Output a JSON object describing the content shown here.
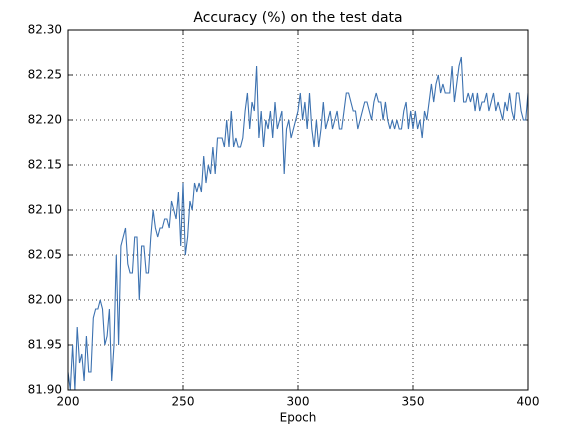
{
  "chart_data": {
    "type": "line",
    "title": "Accuracy (%) on the test data",
    "x_label": "Epoch",
    "x": [
      200,
      201,
      202,
      203,
      204,
      205,
      206,
      207,
      208,
      209,
      210,
      211,
      212,
      213,
      214,
      215,
      216,
      217,
      218,
      219,
      220,
      221,
      222,
      223,
      224,
      225,
      226,
      227,
      228,
      229,
      230,
      231,
      232,
      233,
      234,
      235,
      236,
      237,
      238,
      239,
      240,
      241,
      242,
      243,
      244,
      245,
      246,
      247,
      248,
      249,
      250,
      251,
      252,
      253,
      254,
      255,
      256,
      257,
      258,
      259,
      260,
      261,
      262,
      263,
      264,
      265,
      266,
      267,
      268,
      269,
      270,
      271,
      272,
      273,
      274,
      275,
      276,
      277,
      278,
      279,
      280,
      281,
      282,
      283,
      284,
      285,
      286,
      287,
      288,
      289,
      290,
      291,
      292,
      293,
      294,
      295,
      296,
      297,
      298,
      299,
      300,
      301,
      302,
      303,
      304,
      305,
      306,
      307,
      308,
      309,
      310,
      311,
      312,
      313,
      314,
      315,
      316,
      317,
      318,
      319,
      320,
      321,
      322,
      323,
      324,
      325,
      326,
      327,
      328,
      329,
      330,
      331,
      332,
      333,
      334,
      335,
      336,
      337,
      338,
      339,
      340,
      341,
      342,
      343,
      344,
      345,
      346,
      347,
      348,
      349,
      350,
      351,
      352,
      353,
      354,
      355,
      356,
      357,
      358,
      359,
      360,
      361,
      362,
      363,
      364,
      365,
      366,
      367,
      368,
      369,
      370,
      371,
      372,
      373,
      374,
      375,
      376,
      377,
      378,
      379,
      380,
      381,
      382,
      383,
      384,
      385,
      386,
      387,
      388,
      389,
      390,
      391,
      392,
      393,
      394,
      395,
      396,
      397,
      398,
      399,
      400
    ],
    "series": [
      {
        "color": "#3d72b0",
        "values": [
          81.92,
          81.9,
          81.95,
          81.9,
          81.97,
          81.93,
          81.94,
          81.91,
          81.96,
          81.92,
          81.92,
          81.98,
          81.99,
          81.99,
          82.0,
          81.99,
          81.95,
          81.96,
          81.99,
          81.91,
          81.95,
          82.05,
          81.95,
          82.06,
          82.07,
          82.08,
          82.04,
          82.03,
          82.03,
          82.07,
          82.07,
          82.0,
          82.06,
          82.06,
          82.03,
          82.03,
          82.07,
          82.1,
          82.08,
          82.07,
          82.08,
          82.08,
          82.09,
          82.09,
          82.08,
          82.11,
          82.1,
          82.09,
          82.12,
          82.06,
          82.13,
          82.05,
          82.07,
          82.11,
          82.1,
          82.13,
          82.12,
          82.13,
          82.12,
          82.16,
          82.13,
          82.15,
          82.14,
          82.17,
          82.14,
          82.18,
          82.18,
          82.18,
          82.17,
          82.2,
          82.17,
          82.21,
          82.17,
          82.18,
          82.17,
          82.17,
          82.18,
          82.21,
          82.23,
          82.19,
          82.22,
          82.21,
          82.26,
          82.18,
          82.21,
          82.17,
          82.2,
          82.19,
          82.21,
          82.18,
          82.22,
          82.19,
          82.2,
          82.21,
          82.14,
          82.19,
          82.2,
          82.18,
          82.19,
          82.2,
          82.21,
          82.23,
          82.2,
          82.22,
          82.19,
          82.23,
          82.19,
          82.17,
          82.2,
          82.17,
          82.19,
          82.22,
          82.19,
          82.2,
          82.21,
          82.19,
          82.2,
          82.21,
          82.19,
          82.19,
          82.21,
          82.23,
          82.23,
          82.22,
          82.21,
          82.21,
          82.19,
          82.2,
          82.21,
          82.22,
          82.22,
          82.21,
          82.2,
          82.22,
          82.23,
          82.22,
          82.22,
          82.2,
          82.22,
          82.2,
          82.19,
          82.2,
          82.19,
          82.2,
          82.19,
          82.19,
          82.21,
          82.22,
          82.19,
          82.21,
          82.19,
          82.21,
          82.19,
          82.2,
          82.18,
          82.21,
          82.2,
          82.22,
          82.24,
          82.22,
          82.24,
          82.25,
          82.23,
          82.24,
          82.23,
          82.23,
          82.23,
          82.26,
          82.22,
          82.24,
          82.26,
          82.27,
          82.22,
          82.22,
          82.23,
          82.22,
          82.23,
          82.21,
          82.23,
          82.21,
          82.22,
          82.22,
          82.23,
          82.21,
          82.22,
          82.23,
          82.21,
          82.22,
          82.21,
          82.2,
          82.22,
          82.21,
          82.23,
          82.21,
          82.2,
          82.23,
          82.23,
          82.21,
          82.2,
          82.2,
          82.23
        ]
      }
    ],
    "xlim": [
      200,
      400
    ],
    "xticks": [
      200,
      250,
      300,
      350,
      400
    ],
    "ylim": [
      81.9,
      82.3
    ],
    "yticks": [
      {
        "value": 81.9,
        "label": "81.90"
      },
      81.95,
      {
        "value": 82.0,
        "label": "82.00"
      },
      82.05,
      {
        "value": 82.1,
        "label": "82.10"
      },
      82.15,
      {
        "value": 82.2,
        "label": "82.20"
      },
      82.25,
      {
        "value": 82.3,
        "label": "82.30"
      }
    ],
    "grid": true
  }
}
